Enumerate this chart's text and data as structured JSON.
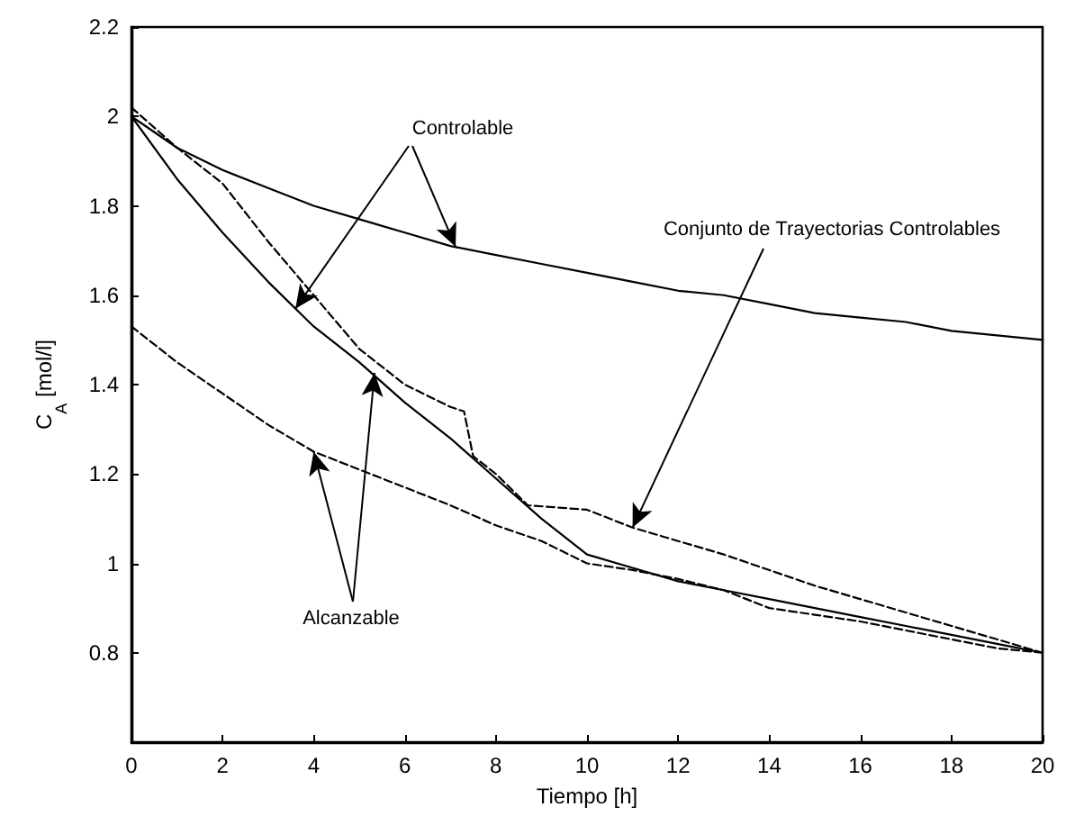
{
  "chart_data": {
    "type": "line",
    "xlabel": "Tiempo [h]",
    "ylabel": "C$_{A}$ [mol/l]",
    "xlim": [
      0,
      20
    ],
    "ylim": [
      0.6,
      2.2
    ],
    "xticks": [
      0,
      2,
      4,
      6,
      8,
      10,
      12,
      14,
      16,
      18,
      20
    ],
    "yticks": [
      0.8,
      1,
      1.2,
      1.4,
      1.6,
      1.8,
      2,
      2.2
    ],
    "grid": false,
    "marker": "none",
    "annotations": [
      {
        "text": "Controlable",
        "x": 3.6,
        "y": 1.57
      },
      {
        "text": "Conjunto de Trayectorias Controlables",
        "x": 11,
        "y": 1.08
      },
      {
        "text": "Alcanzable",
        "x": 4,
        "y": 1.25
      }
    ],
    "series": [
      {
        "color": "#000000",
        "line_style": "solid",
        "x": [
          0,
          1,
          2,
          3,
          4,
          5,
          6,
          7,
          8,
          9,
          10,
          11,
          12,
          13,
          14,
          15,
          16,
          17,
          18,
          19,
          20
        ],
        "values": [
          2.0,
          1.93,
          1.88,
          1.84,
          1.8,
          1.77,
          1.74,
          1.71,
          1.69,
          1.67,
          1.65,
          1.63,
          1.61,
          1.6,
          1.58,
          1.56,
          1.55,
          1.54,
          1.52,
          1.51,
          1.5
        ]
      },
      {
        "color": "#000000",
        "line_style": "solid",
        "x": [
          0,
          1,
          2,
          3,
          4,
          5,
          6,
          7,
          8,
          9,
          10,
          11,
          12,
          13,
          14,
          15,
          16,
          17,
          18,
          19,
          20
        ],
        "values": [
          2.0,
          1.86,
          1.74,
          1.63,
          1.53,
          1.45,
          1.36,
          1.28,
          1.19,
          1.1,
          1.02,
          0.99,
          0.96,
          0.94,
          0.92,
          0.9,
          0.88,
          0.86,
          0.84,
          0.82,
          0.8
        ]
      },
      {
        "color": "#000000",
        "line_style": "dashed",
        "x": [
          0,
          1,
          2,
          3,
          4,
          5,
          6,
          7,
          7.3,
          7.5,
          8,
          8.7,
          10,
          11,
          13,
          15,
          18,
          20
        ],
        "values": [
          2.02,
          1.93,
          1.85,
          1.72,
          1.6,
          1.48,
          1.4,
          1.35,
          1.34,
          1.24,
          1.2,
          1.13,
          1.12,
          1.08,
          1.02,
          0.95,
          0.86,
          0.8
        ]
      },
      {
        "color": "#000000",
        "line_style": "dashed",
        "x": [
          0,
          1,
          2,
          3,
          4,
          5,
          6,
          7,
          8,
          9,
          10,
          11,
          12,
          13,
          14,
          15,
          16,
          17,
          18,
          19,
          20
        ],
        "values": [
          1.53,
          1.45,
          1.38,
          1.31,
          1.25,
          1.21,
          1.17,
          1.13,
          1.085,
          1.05,
          1.0,
          0.985,
          0.965,
          0.94,
          0.9,
          0.885,
          0.87,
          0.85,
          0.83,
          0.81,
          0.8
        ]
      }
    ]
  }
}
